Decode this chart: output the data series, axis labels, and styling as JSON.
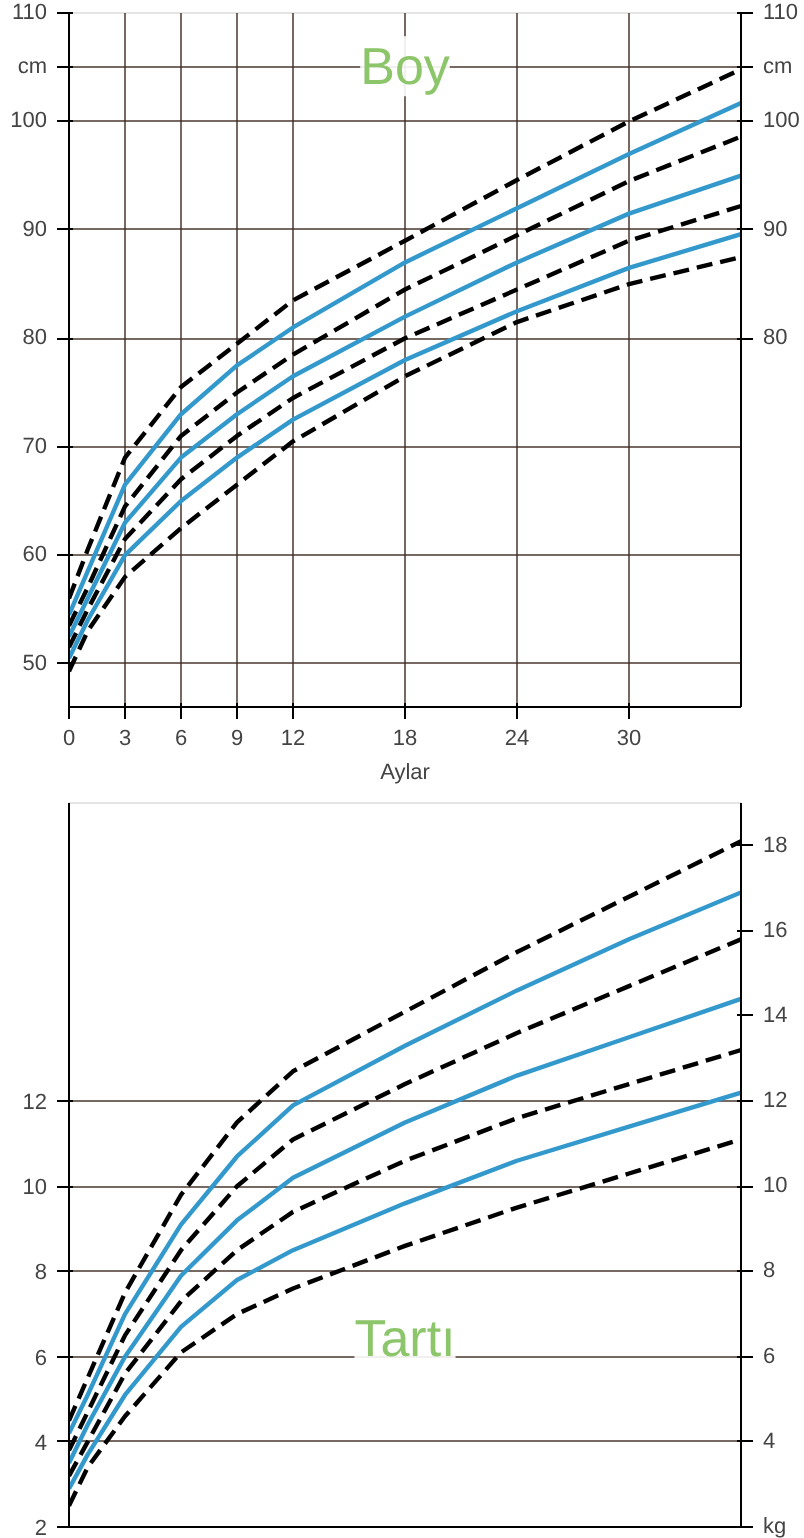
{
  "chart_data": [
    {
      "type": "line",
      "title": "Boy",
      "xlabel": "Aylar",
      "x": [
        0,
        1,
        3,
        6,
        9,
        12,
        18,
        24,
        30,
        36
      ],
      "xlim": [
        0,
        36
      ],
      "xticks": [
        0,
        3,
        6,
        9,
        12,
        18,
        24,
        30
      ],
      "ylim": [
        46,
        110
      ],
      "yticks": [
        50,
        60,
        70,
        80,
        90,
        100,
        {
          "value": 105,
          "label": "cm"
        },
        110
      ],
      "y2lim": [
        46,
        110
      ],
      "y2ticks": [
        80,
        90,
        100,
        {
          "value": 105,
          "label": "cm"
        },
        110
      ],
      "grid": true,
      "series": [
        {
          "color": "#000000",
          "line_style": "dashed",
          "values": [
            56,
            60.5,
            69,
            75.5,
            79.5,
            83.5,
            89,
            94.6,
            100,
            104.8
          ]
        },
        {
          "color": "#3399cc",
          "line_style": "solid",
          "values": [
            54.5,
            58.5,
            66.5,
            73,
            77.5,
            81,
            87,
            92,
            97,
            101.7
          ]
        },
        {
          "color": "#000000",
          "line_style": "dashed",
          "values": [
            53.5,
            57,
            64.5,
            71,
            75,
            78.5,
            84.5,
            89.5,
            94.5,
            98.6
          ]
        },
        {
          "color": "#3399cc",
          "line_style": "solid",
          "values": [
            52.5,
            56,
            63,
            69,
            73,
            76.5,
            82,
            87,
            91.5,
            95
          ]
        },
        {
          "color": "#000000",
          "line_style": "dashed",
          "values": [
            51.5,
            55,
            61.5,
            67,
            71,
            74.5,
            80,
            84.5,
            89,
            92.2
          ]
        },
        {
          "color": "#3399cc",
          "line_style": "solid",
          "values": [
            50.5,
            54,
            60,
            65,
            69,
            72.5,
            78,
            82.5,
            86.5,
            89.6
          ]
        },
        {
          "color": "#000000",
          "line_style": "dashed",
          "values": [
            49.3,
            53,
            58,
            62.5,
            66.5,
            70.5,
            76.5,
            81.5,
            85,
            87.5
          ]
        }
      ]
    },
    {
      "type": "line",
      "title": "Tartı",
      "x": [
        0,
        1,
        3,
        6,
        9,
        12,
        18,
        24,
        30,
        36
      ],
      "xlim": [
        0,
        36
      ],
      "ylim": [
        2,
        19
      ],
      "yticks": [
        2,
        4,
        6,
        8,
        10,
        12
      ],
      "y2lim": [
        2,
        19
      ],
      "y2ticks": [
        {
          "value": 2,
          "label": "kg"
        },
        4,
        6,
        8,
        10,
        12,
        14,
        16,
        18
      ],
      "tick_labels": "y",
      "grid": true,
      "series": [
        {
          "color": "#000000",
          "line_style": "dashed",
          "values": [
            4.5,
            5.5,
            7.5,
            9.8,
            11.5,
            12.7,
            14.1,
            15.5,
            16.8,
            18.1
          ]
        },
        {
          "color": "#3399cc",
          "line_style": "solid",
          "values": [
            4.2,
            5.1,
            7.0,
            9.1,
            10.7,
            11.9,
            13.3,
            14.6,
            15.8,
            16.9
          ]
        },
        {
          "color": "#000000",
          "line_style": "dashed",
          "values": [
            3.8,
            4.7,
            6.5,
            8.5,
            10.0,
            11.1,
            12.4,
            13.6,
            14.7,
            15.8
          ]
        },
        {
          "color": "#3399cc",
          "line_style": "solid",
          "values": [
            3.5,
            4.4,
            6.0,
            7.9,
            9.2,
            10.2,
            11.5,
            12.6,
            13.5,
            14.4
          ]
        },
        {
          "color": "#000000",
          "line_style": "dashed",
          "values": [
            3.2,
            4.0,
            5.6,
            7.3,
            8.5,
            9.4,
            10.6,
            11.6,
            12.4,
            13.2
          ]
        },
        {
          "color": "#3399cc",
          "line_style": "solid",
          "values": [
            2.9,
            3.7,
            5.1,
            6.7,
            7.8,
            8.5,
            9.6,
            10.6,
            11.4,
            12.2
          ]
        },
        {
          "color": "#000000",
          "line_style": "dashed",
          "values": [
            2.5,
            3.4,
            4.6,
            6.1,
            7.0,
            7.6,
            8.6,
            9.5,
            10.3,
            11.1
          ]
        }
      ]
    }
  ]
}
